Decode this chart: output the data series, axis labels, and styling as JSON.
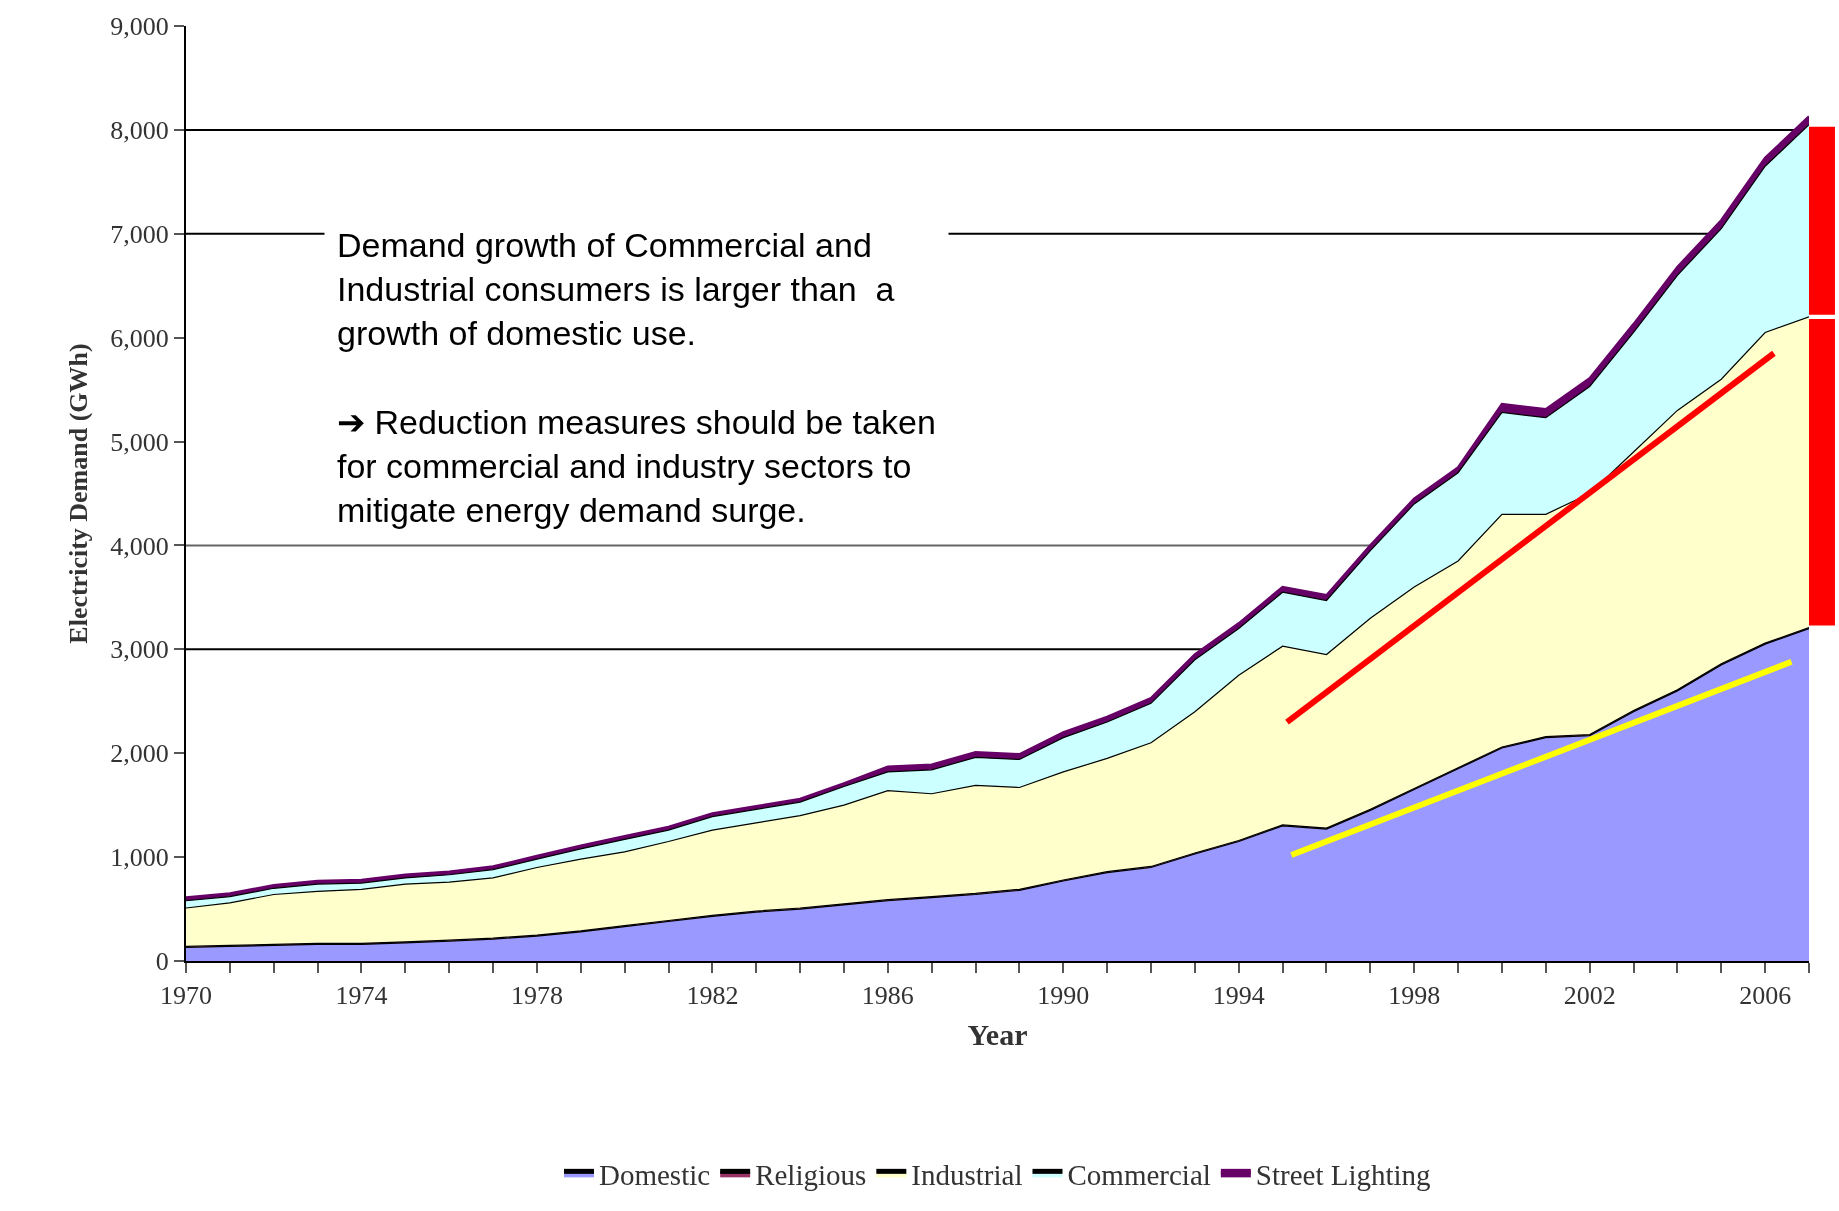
{
  "chart_data": {
    "type": "area",
    "stacked": true,
    "xlabel": "Year",
    "ylabel": "Electricity Demand (GWh)",
    "x": [
      1970,
      1971,
      1972,
      1973,
      1974,
      1975,
      1976,
      1977,
      1978,
      1979,
      1980,
      1981,
      1982,
      1983,
      1984,
      1985,
      1986,
      1987,
      1988,
      1989,
      1990,
      1991,
      1992,
      1993,
      1994,
      1995,
      1996,
      1997,
      1998,
      1999,
      2000,
      2001,
      2002,
      2003,
      2004,
      2005,
      2006,
      2007
    ],
    "series": [
      {
        "name": "Domestic",
        "color": "#9999ff",
        "values": [
          130,
          140,
          150,
          160,
          160,
          175,
          190,
          210,
          240,
          280,
          330,
          380,
          430,
          470,
          500,
          540,
          580,
          610,
          640,
          680,
          770,
          850,
          900,
          1030,
          1150,
          1300,
          1270,
          1450,
          1650,
          1850,
          2050,
          2150,
          2170,
          2400,
          2600,
          2850,
          3050,
          3200
        ]
      },
      {
        "name": "Religious",
        "color": "#993366",
        "values": [
          10,
          10,
          10,
          10,
          10,
          10,
          10,
          10,
          10,
          10,
          10,
          10,
          10,
          10,
          10,
          10,
          10,
          10,
          10,
          10,
          10,
          10,
          10,
          10,
          10,
          10,
          10,
          10,
          10,
          10,
          10,
          10,
          10,
          10,
          10,
          10,
          10,
          10
        ]
      },
      {
        "name": "Industrial",
        "color": "#ffffcc",
        "values": [
          370,
          410,
          480,
          500,
          520,
          555,
          560,
          580,
          650,
          690,
          710,
          760,
          820,
          850,
          890,
          950,
          1050,
          990,
          1040,
          980,
          1040,
          1090,
          1190,
          1360,
          1590,
          1720,
          1670,
          1840,
          1940,
          1990,
          2240,
          2140,
          2320,
          2490,
          2690,
          2740,
          2990,
          2990
        ]
      },
      {
        "name": "Commercial",
        "color": "#ccffff",
        "values": [
          70,
          60,
          60,
          70,
          60,
          60,
          70,
          80,
          80,
          100,
          120,
          110,
          130,
          130,
          130,
          180,
          180,
          230,
          270,
          270,
          330,
          350,
          380,
          500,
          450,
          520,
          520,
          650,
          800,
          850,
          980,
          930,
          1030,
          1150,
          1300,
          1450,
          1600,
          1850
        ]
      },
      {
        "name": "Street Lighting",
        "color": "#660066",
        "values": [
          30,
          30,
          30,
          30,
          30,
          30,
          30,
          30,
          30,
          30,
          30,
          30,
          30,
          30,
          30,
          30,
          50,
          50,
          50,
          50,
          50,
          50,
          50,
          50,
          50,
          50,
          50,
          50,
          50,
          50,
          80,
          80,
          80,
          80,
          80,
          80,
          80,
          80
        ]
      },
      {
        "type": "line",
        "color": "#ff0000",
        "x": [
          1995.1,
          2006.2
        ],
        "values": [
          2300,
          5850
        ]
      },
      {
        "type": "line",
        "color": "#ffff00",
        "x": [
          1995.2,
          2006.6
        ],
        "values": [
          1020,
          2880
        ]
      }
    ],
    "xlim": [
      1970,
      2007
    ],
    "xticks": [
      1970,
      {
        "value": 1971,
        "label": null
      },
      {
        "value": 1972,
        "label": null
      },
      {
        "value": 1973,
        "label": null
      },
      1974,
      {
        "value": 1975,
        "label": null
      },
      {
        "value": 1976,
        "label": null
      },
      {
        "value": 1977,
        "label": null
      },
      1978,
      {
        "value": 1979,
        "label": null
      },
      {
        "value": 1980,
        "label": null
      },
      {
        "value": 1981,
        "label": null
      },
      1982,
      {
        "value": 1983,
        "label": null
      },
      {
        "value": 1984,
        "label": null
      },
      {
        "value": 1985,
        "label": null
      },
      1986,
      {
        "value": 1987,
        "label": null
      },
      {
        "value": 1988,
        "label": null
      },
      {
        "value": 1989,
        "label": null
      },
      1990,
      {
        "value": 1991,
        "label": null
      },
      {
        "value": 1992,
        "label": null
      },
      {
        "value": 1993,
        "label": null
      },
      1994,
      {
        "value": 1995,
        "label": null
      },
      {
        "value": 1996,
        "label": null
      },
      {
        "value": 1997,
        "label": null
      },
      1998,
      {
        "value": 1999,
        "label": null
      },
      {
        "value": 2000,
        "label": null
      },
      {
        "value": 2001,
        "label": null
      },
      2002,
      {
        "value": 2003,
        "label": null
      },
      {
        "value": 2004,
        "label": null
      },
      {
        "value": 2005,
        "label": null
      },
      2006,
      {
        "value": 2007,
        "label": null
      }
    ],
    "ylim": [
      0,
      9000
    ],
    "yticks": [
      0,
      {
        "value": 1000,
        "label": "1,000"
      },
      {
        "value": 2000,
        "label": "2,000"
      },
      {
        "value": 3000,
        "label": "3,000"
      },
      {
        "value": 4000,
        "label": "4,000"
      },
      {
        "value": 5000,
        "label": "5,000"
      },
      {
        "value": 6000,
        "label": "6,000"
      },
      {
        "value": 7000,
        "label": "7,000"
      },
      {
        "value": 8000,
        "label": "8,000"
      },
      {
        "value": 9000,
        "label": "9,000"
      }
    ],
    "ref_lines": [
      {
        "axis": "y",
        "value": 3000,
        "color": "#000000"
      },
      {
        "axis": "y",
        "value": 4000,
        "color": "#666666"
      },
      {
        "axis": "y",
        "value": 7000,
        "color": "#000000"
      },
      {
        "axis": "y",
        "value": 8000,
        "color": "#000000"
      }
    ],
    "annotations": [
      "Demand growth of Commercial and\nIndustrial consumers is larger than  a\ngrowth of domestic use.\n\n➔ Reduction measures should be taken\nfor commercial and industry sectors to\nmitigate energy demand surge."
    ],
    "legend": "bottom",
    "marker": "none",
    "line_style": "solid",
    "grid": false
  }
}
